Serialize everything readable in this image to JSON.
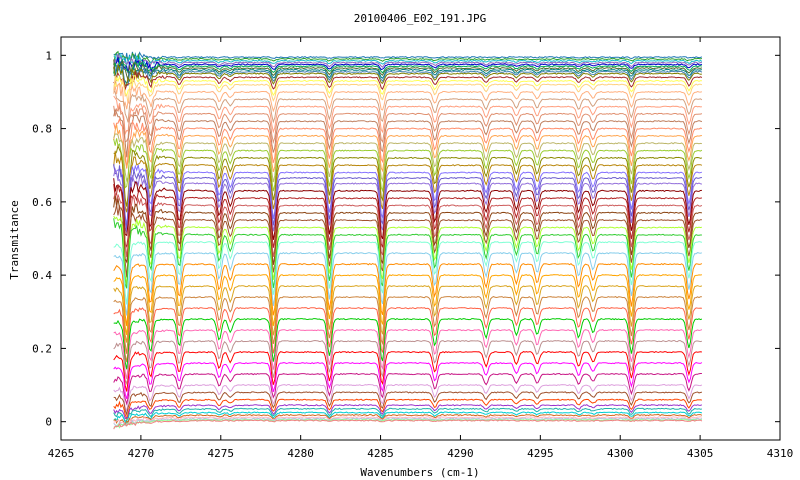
{
  "chart_data": {
    "type": "line",
    "title": "20100406_E02_191.JPG",
    "xlabel": "Wavenumbers (cm-1)",
    "ylabel": "Transmitance",
    "xlim": [
      4265,
      4310
    ],
    "ylim": [
      -0.05,
      1.05
    ],
    "x_ticks": [
      4265,
      4270,
      4275,
      4280,
      4285,
      4290,
      4295,
      4300,
      4305,
      4310
    ],
    "y_ticks": [
      0,
      0.2,
      0.4,
      0.6,
      0.8,
      1
    ],
    "y_tick_labels": [
      "0",
      "0.2",
      "0.4",
      "0.6",
      "0.8",
      "1"
    ],
    "grid": false,
    "x_range_data": [
      4268.3,
      4305.2
    ],
    "absorption_lines": [
      {
        "x": 4269.1,
        "depth": 0.18
      },
      {
        "x": 4270.6,
        "depth": 0.12
      },
      {
        "x": 4272.4,
        "depth": 0.1
      },
      {
        "x": 4274.9,
        "depth": 0.08
      },
      {
        "x": 4275.6,
        "depth": 0.05
      },
      {
        "x": 4278.3,
        "depth": 0.16
      },
      {
        "x": 4281.8,
        "depth": 0.14
      },
      {
        "x": 4285.1,
        "depth": 0.16
      },
      {
        "x": 4288.4,
        "depth": 0.1
      },
      {
        "x": 4291.6,
        "depth": 0.07
      },
      {
        "x": 4293.5,
        "depth": 0.06
      },
      {
        "x": 4294.8,
        "depth": 0.06
      },
      {
        "x": 4297.4,
        "depth": 0.07
      },
      {
        "x": 4298.3,
        "depth": 0.05
      },
      {
        "x": 4300.7,
        "depth": 0.13
      },
      {
        "x": 4304.3,
        "depth": 0.11
      }
    ],
    "series_baselines": [
      0.995,
      0.99,
      0.985,
      0.98,
      0.975,
      0.97,
      0.965,
      0.96,
      0.955,
      0.95,
      0.94,
      0.93,
      0.92,
      0.9,
      0.88,
      0.86,
      0.84,
      0.82,
      0.8,
      0.78,
      0.76,
      0.74,
      0.72,
      0.7,
      0.68,
      0.665,
      0.65,
      0.63,
      0.61,
      0.59,
      0.57,
      0.55,
      0.53,
      0.51,
      0.49,
      0.46,
      0.43,
      0.4,
      0.37,
      0.34,
      0.31,
      0.28,
      0.25,
      0.22,
      0.19,
      0.16,
      0.13,
      0.1,
      0.08,
      0.06,
      0.045,
      0.035,
      0.025,
      0.018,
      0.012,
      0.008,
      0.005,
      0.003
    ],
    "series_colors": [
      "#1f77b4",
      "#2ca02c",
      "#17becf",
      "#9467bd",
      "#0000cc",
      "#00aa55",
      "#556b2f",
      "#008080",
      "#4682b4",
      "#808000",
      "#a52a2a",
      "#ffff55",
      "#ffd27f",
      "#ffb07f",
      "#d2a07f",
      "#ff9f7f",
      "#e09070",
      "#c08060",
      "#ff8c69",
      "#ffa54f",
      "#bdb76b",
      "#9acd32",
      "#8b8b00",
      "#b8860b",
      "#8470ff",
      "#6a5acd",
      "#9370db",
      "#8b0000",
      "#b22222",
      "#cd5c5c",
      "#8b4513",
      "#a0522d",
      "#adff2f",
      "#32cd32",
      "#7fffd4",
      "#87ceeb",
      "#ff8c00",
      "#ffa500",
      "#daa520",
      "#cd853f",
      "#ff6347",
      "#00cc00",
      "#ff69b4",
      "#bc8f8f",
      "#ff0000",
      "#ff00ff",
      "#c71585",
      "#dda0dd",
      "#a0522d",
      "#ff4500",
      "#9932cc",
      "#20b2aa",
      "#00ced1",
      "#d2691e",
      "#ffb6c1",
      "#b0c4de",
      "#98fb98",
      "#f08080"
    ]
  }
}
